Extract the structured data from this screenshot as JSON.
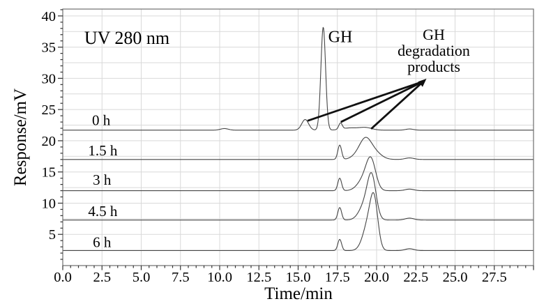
{
  "figure": {
    "uv_label": "UV 280 nm",
    "gh_label": "GH",
    "deg_lines": [
      "GH",
      "degradation",
      "products"
    ],
    "xlabel": "Time/min",
    "ylabel": "Response/mV"
  },
  "chart_data": {
    "type": "line",
    "title": "",
    "xlabel": "Time/min",
    "ylabel": "Response/mV",
    "xlim": [
      0,
      30
    ],
    "ylim": [
      0,
      41.1
    ],
    "grid_on": true,
    "grid_step": 2.5,
    "x_major_tick_values": [
      0,
      2.5,
      5,
      7.5,
      10,
      12.5,
      15,
      17.5,
      20,
      22.5,
      25,
      27.5
    ],
    "x_major_tick_labels": [
      "0.0",
      "2.5",
      "5.0",
      "7.5",
      "10.0",
      "12.5",
      "15.0",
      "17.5",
      "20.0",
      "22.5",
      "25.0",
      "27.5"
    ],
    "x_minor_tick_step": 0.5,
    "y_major_tick_values": [
      5,
      10,
      15,
      20,
      25,
      30,
      35,
      40
    ],
    "y_major_tick_labels": [
      "5",
      "10",
      "15",
      "20",
      "25",
      "30",
      "35",
      "40"
    ],
    "y_minor_tick_step": 1,
    "colors": {
      "trace": "#454545",
      "grid": "#d9d9d9",
      "frame": "#6f6f6f",
      "tick": "#333333",
      "text": "#000000",
      "arrow": "#111111"
    },
    "series": [
      {
        "name": "0 h",
        "label": "0 h",
        "baseline_mv": 21.7,
        "label_pos": {
          "t": 2.45,
          "mv": 23.3
        },
        "main_peak": {
          "name": "GH",
          "center_min": 16.6,
          "apex_mv": 38.2
        },
        "peaks": [
          {
            "center_min": 10.3,
            "height_mv": 0.25,
            "sigma_min": 0.25
          },
          {
            "center_min": 15.45,
            "height_mv": 1.7,
            "sigma_min": 0.22
          },
          {
            "center_min": 16.6,
            "height_mv": 16.5,
            "sigma_min": 0.15
          },
          {
            "center_min": 17.7,
            "height_mv": 1.0,
            "sigma_min": 0.11
          },
          {
            "center_min": 18.3,
            "height_mv": 0.35,
            "sigma_min": 0.5
          },
          {
            "center_min": 19.3,
            "height_mv": 0.4,
            "sigma_min": 0.4
          },
          {
            "center_min": 22.1,
            "height_mv": 0.18,
            "sigma_min": 0.25
          }
        ]
      },
      {
        "name": "1.5 h",
        "label": "1.5 h",
        "baseline_mv": 17.0,
        "label_pos": {
          "t": 2.55,
          "mv": 18.45
        },
        "main_peak": {
          "name": "degradation products",
          "center_min": 19.3,
          "apex_mv": 20.7
        },
        "peaks": [
          {
            "center_min": 17.65,
            "height_mv": 2.3,
            "sigma_min": 0.12
          },
          {
            "center_min": 18.9,
            "height_mv": 0.9,
            "sigma_min": 0.4
          },
          {
            "center_min": 19.3,
            "height_mv": 2.3,
            "sigma_min": 0.35
          },
          {
            "center_min": 19.8,
            "height_mv": 1.3,
            "sigma_min": 0.45
          },
          {
            "center_min": 22.1,
            "height_mv": 0.25,
            "sigma_min": 0.28
          }
        ]
      },
      {
        "name": "3 h",
        "label": "3 h",
        "baseline_mv": 12.0,
        "label_pos": {
          "t": 2.5,
          "mv": 13.75
        },
        "main_peak": {
          "name": "degradation products",
          "center_min": 19.65,
          "apex_mv": 17.4
        },
        "peaks": [
          {
            "center_min": 17.65,
            "height_mv": 2.0,
            "sigma_min": 0.12
          },
          {
            "center_min": 19.2,
            "height_mv": 1.8,
            "sigma_min": 0.4
          },
          {
            "center_min": 19.65,
            "height_mv": 4.4,
            "sigma_min": 0.3
          },
          {
            "center_min": 22.1,
            "height_mv": 0.25,
            "sigma_min": 0.28
          }
        ]
      },
      {
        "name": "4.5 h",
        "label": "4.5 h",
        "baseline_mv": 7.3,
        "label_pos": {
          "t": 2.55,
          "mv": 8.7
        },
        "main_peak": {
          "name": "degradation products",
          "center_min": 19.7,
          "apex_mv": 14.9
        },
        "peaks": [
          {
            "center_min": 17.65,
            "height_mv": 2.0,
            "sigma_min": 0.12
          },
          {
            "center_min": 19.3,
            "height_mv": 2.6,
            "sigma_min": 0.38
          },
          {
            "center_min": 19.7,
            "height_mv": 6.0,
            "sigma_min": 0.27
          },
          {
            "center_min": 22.1,
            "height_mv": 0.3,
            "sigma_min": 0.28
          }
        ]
      },
      {
        "name": "6 h",
        "label": "6 h",
        "baseline_mv": 2.4,
        "label_pos": {
          "t": 2.5,
          "mv": 3.75
        },
        "main_peak": {
          "name": "degradation products",
          "center_min": 19.85,
          "apex_mv": 11.5
        },
        "peaks": [
          {
            "center_min": 17.65,
            "height_mv": 1.8,
            "sigma_min": 0.12
          },
          {
            "center_min": 19.5,
            "height_mv": 4.5,
            "sigma_min": 0.35
          },
          {
            "center_min": 19.85,
            "height_mv": 6.3,
            "sigma_min": 0.24
          },
          {
            "center_min": 22.1,
            "height_mv": 0.3,
            "sigma_min": 0.28
          }
        ]
      }
    ],
    "annotations": {
      "detector": {
        "text": "UV 280 nm"
      },
      "gh_peak_label": {
        "text": "GH",
        "t": 17.7,
        "mv": 36.5
      },
      "degradation_label": {
        "lines": [
          "GH",
          "degradation",
          "products"
        ],
        "t": 23.65,
        "mv": 36.9
      },
      "arrows": {
        "head": {
          "t": 22.98,
          "mv": 29.5
        },
        "tails": [
          {
            "t": 15.6,
            "mv": 23.2
          },
          {
            "t": 17.72,
            "mv": 23.0
          },
          {
            "t": 19.65,
            "mv": 21.9
          }
        ]
      }
    }
  }
}
